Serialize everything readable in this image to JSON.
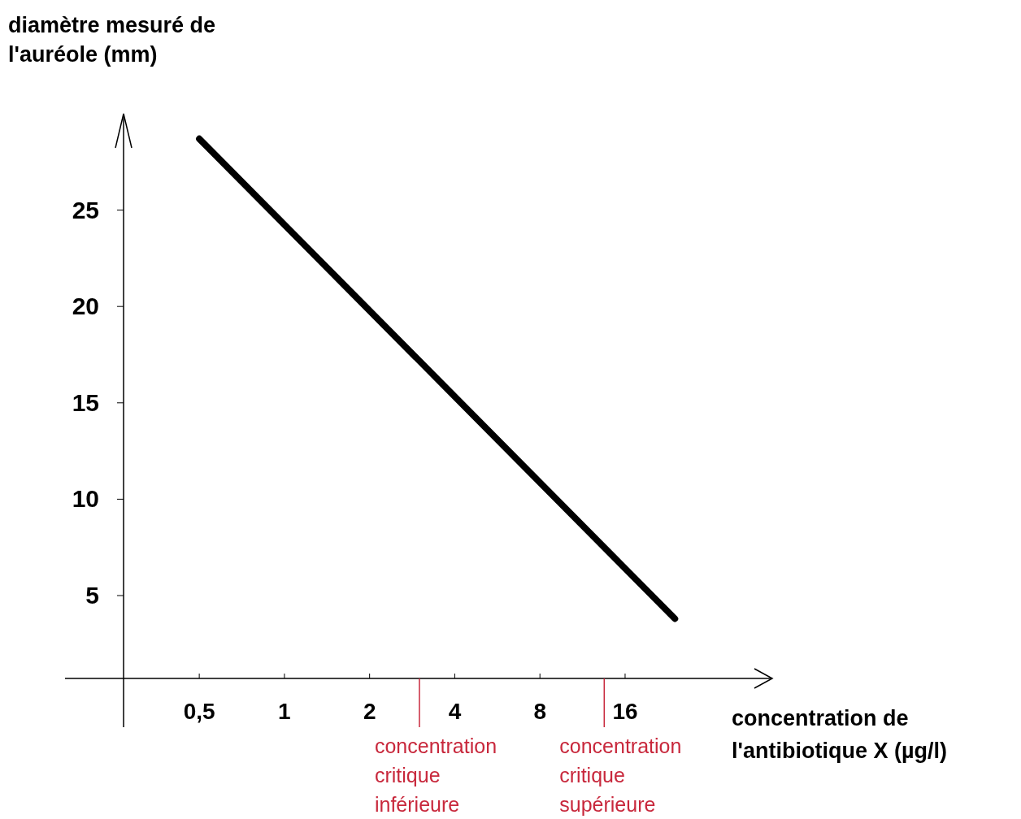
{
  "chart_data": {
    "type": "line",
    "xlabel": "concentration de l'antibiotique X (µg/l)",
    "ylabel": "diamètre mesuré de l'auréole (mm)",
    "x": [
      0.5,
      24
    ],
    "series": [
      {
        "color": "#000000",
        "values": [
          28.7,
          3.8
        ]
      }
    ],
    "log": "x",
    "xlim": [
      0.27,
      53
    ],
    "ylim": [
      0.7,
      30
    ],
    "xticks": [
      {
        "value": 0.5,
        "label": "0,5"
      },
      1,
      2,
      4,
      8,
      16
    ],
    "yticks": [
      5,
      10,
      15,
      20,
      25
    ],
    "ref_lines": [
      {
        "axis": "x",
        "value": 3,
        "label": "concentration critique inférieure",
        "color": "#c8283c"
      },
      {
        "axis": "x",
        "value": 13.5,
        "label": "concentration critique supérieure",
        "color": "#c8283c"
      }
    ],
    "grid": false,
    "marker": "none",
    "line_style": "solid"
  }
}
